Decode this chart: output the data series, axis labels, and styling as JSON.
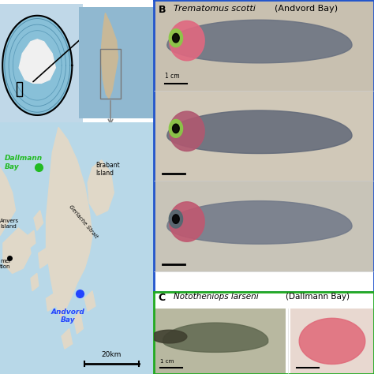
{
  "species_B": "Trematomus scotti",
  "location_B": "(Andvord Bay)",
  "species_C": "Nototheniops larseni",
  "location_C": "(Dallmann Bay)",
  "scale_bar_1cm": "1 cm",
  "scale_bar_20km": "20km",
  "label_dallmann": "Dallmann\nBay",
  "label_andvord": "Andvord\nBay",
  "label_brabant": "Brabant\nIsland",
  "label_gerlache": "Gerlache Strait",
  "label_anvers": "Anvers\nIsland",
  "label_palmer": "mer\ntion",
  "color_dallmann_dot": "#22bb22",
  "color_andvord_dot": "#2244ff",
  "color_dallmann_text": "#22bb22",
  "color_andvord_text": "#2244ff",
  "border_B_color": "#2255cc",
  "border_C_color": "#22aa22",
  "bg_color": "#ffffff",
  "map_ocean_color": "#b8d8e8",
  "map_land_color": "#e0d8c8",
  "fish1_bg": "#c8c0b0",
  "fish1_body": "#706880",
  "fish1_tumor": "#e06080",
  "fish2_bg": "#d0c8b8",
  "fish2_body": "#686078",
  "fish2_pink": "#c06080",
  "fish3_bg": "#d0ccc0",
  "fish3_body": "#787090",
  "fish3_pink": "#c85878",
  "fishC1_bg": "#b8b8a0",
  "fishC1_body": "#606850",
  "fishC2_bg": "#e8c8c0",
  "fishC2_pink": "#e06878",
  "globe_ocean": "#88c0d8",
  "globe_land": "#e8e8e0",
  "globe_ant": "#f0f0f0",
  "region_ocean": "#90b8d0",
  "region_land": "#c8b898"
}
